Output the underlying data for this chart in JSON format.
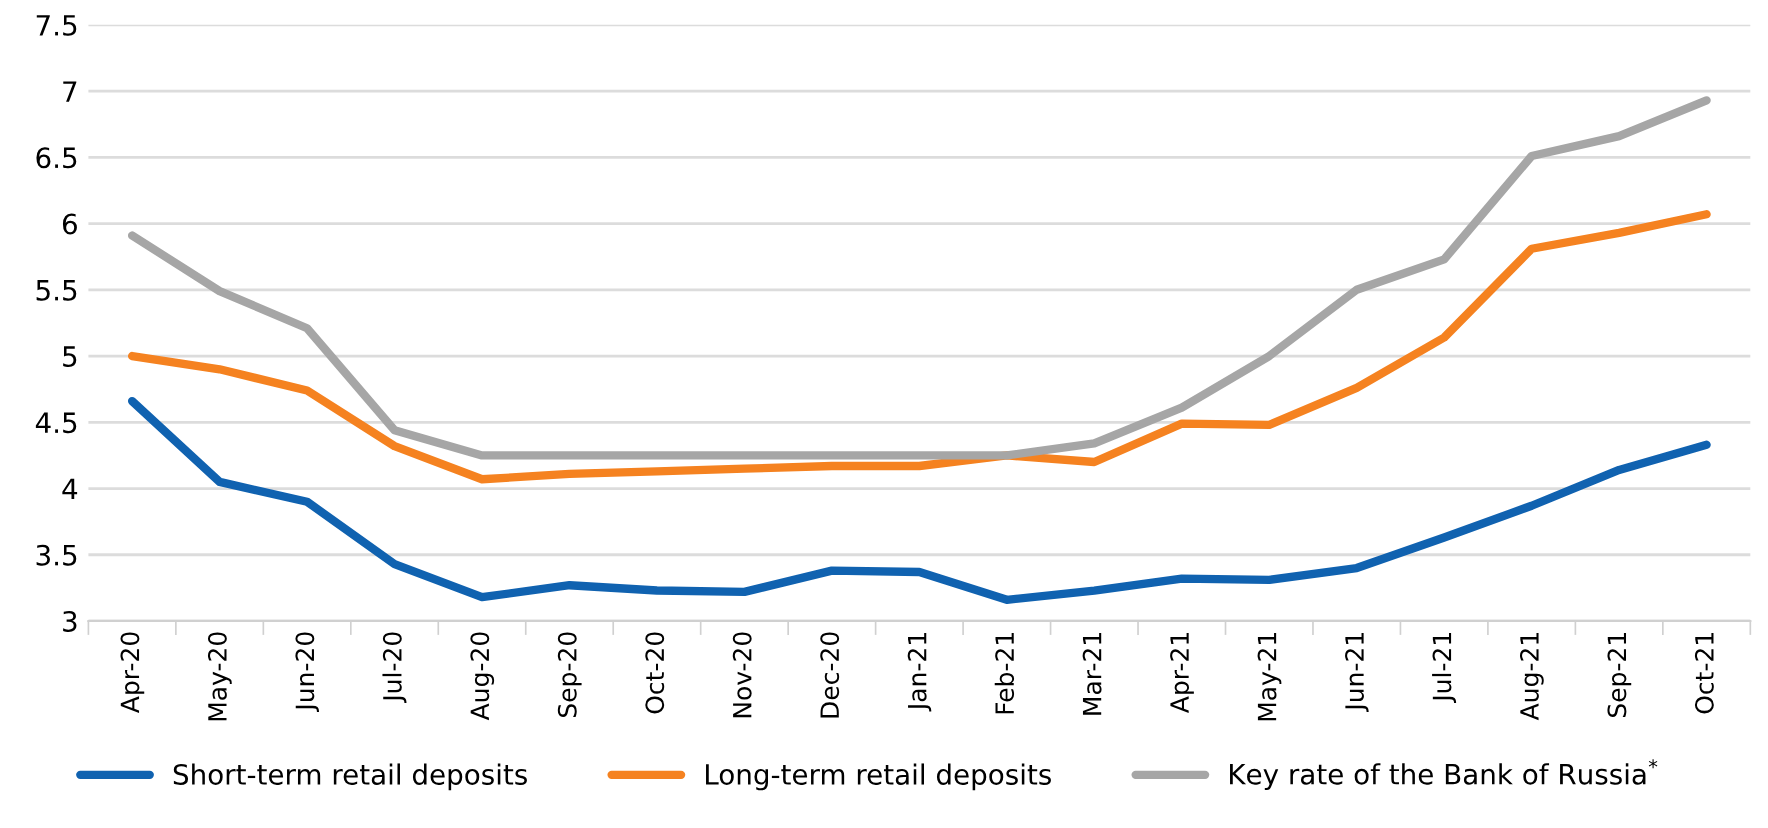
{
  "chart_data": {
    "type": "line",
    "categories": [
      "Apr-20",
      "May-20",
      "Jun-20",
      "Jul-20",
      "Aug-20",
      "Sep-20",
      "Oct-20",
      "Nov-20",
      "Dec-20",
      "Jan-21",
      "Feb-21",
      "Mar-21",
      "Apr-21",
      "May-21",
      "Jun-21",
      "Jul-21",
      "Aug-21",
      "Sep-21",
      "Oct-21"
    ],
    "series": [
      {
        "name": "Short-term retail deposits",
        "color": "#1062b0",
        "values": [
          4.66,
          4.05,
          3.9,
          3.43,
          3.18,
          3.27,
          3.23,
          3.22,
          3.38,
          3.37,
          3.16,
          3.23,
          3.32,
          3.31,
          3.4,
          3.63,
          3.87,
          4.14,
          4.33
        ]
      },
      {
        "name": "Long-term retail deposits",
        "color": "#f58220",
        "values": [
          5.0,
          4.9,
          4.74,
          4.32,
          4.07,
          4.11,
          4.13,
          4.15,
          4.17,
          4.17,
          4.25,
          4.2,
          4.49,
          4.48,
          4.76,
          5.14,
          5.81,
          5.93,
          6.07
        ]
      },
      {
        "name": "Key rate of the Bank of Russia$^{*}$",
        "color": "#a6a6a6",
        "values": [
          5.91,
          5.49,
          5.21,
          4.44,
          4.25,
          4.25,
          4.25,
          4.25,
          4.25,
          4.25,
          4.25,
          4.34,
          4.61,
          5.0,
          5.5,
          5.73,
          6.51,
          6.66,
          6.93
        ]
      }
    ],
    "ylim": [
      3,
      7.5
    ],
    "yticks": [
      3,
      3.5,
      4,
      4.5,
      5,
      5.5,
      6,
      6.5,
      7,
      7.5
    ],
    "grid": "y",
    "legend": "bottom",
    "marker": "none",
    "line_style": "solid"
  }
}
